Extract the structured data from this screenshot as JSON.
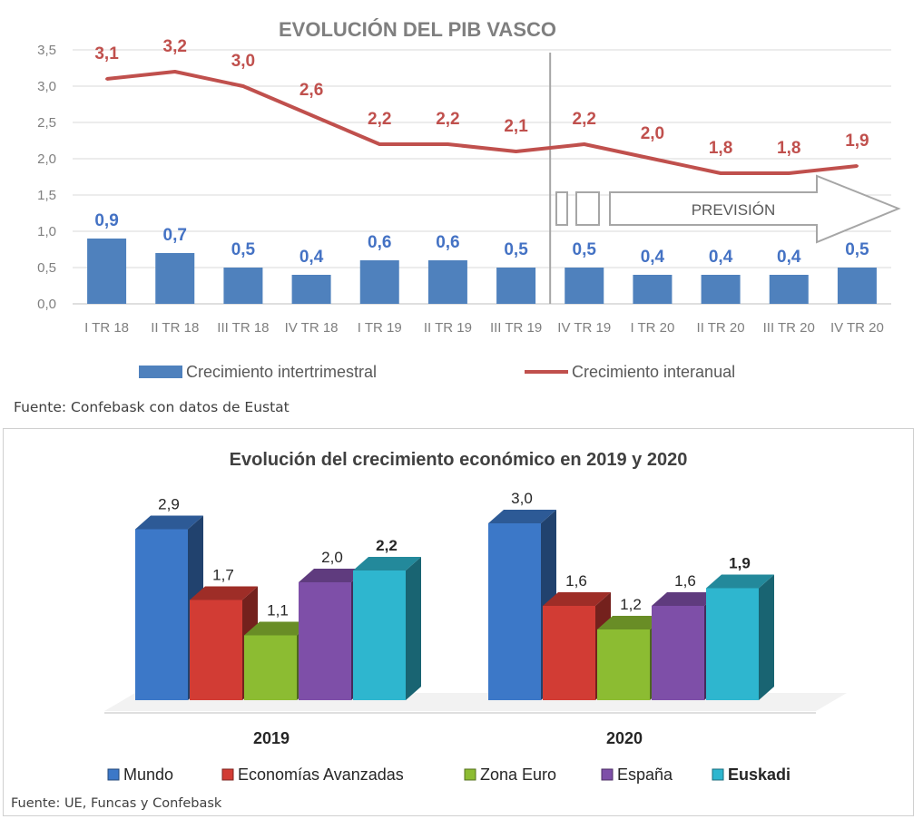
{
  "chart_data": [
    {
      "type": "bar+line",
      "title": "EVOLUCIÓN DEL PIB VASCO",
      "categories": [
        "I TR 18",
        "II TR 18",
        "III TR 18",
        "IV TR 18",
        "I TR 19",
        "II TR 19",
        "III TR 19",
        "IV TR 19",
        "I TR 20",
        "II TR 20",
        "III TR 20",
        "IV TR 20"
      ],
      "series": [
        {
          "name": "Crecimiento intertrimestral",
          "type": "bar",
          "color": "#4f81bd",
          "values": [
            0.9,
            0.7,
            0.5,
            0.4,
            0.6,
            0.6,
            0.5,
            0.5,
            0.4,
            0.4,
            0.4,
            0.5
          ],
          "labels": [
            "0,9",
            "0,7",
            "0,5",
            "0,4",
            "0,6",
            "0,6",
            "0,5",
            "0,5",
            "0,4",
            "0,4",
            "0,4",
            "0,5"
          ]
        },
        {
          "name": "Crecimiento interanual",
          "type": "line",
          "color": "#c0504d",
          "values": [
            3.1,
            3.2,
            3.0,
            2.6,
            2.2,
            2.2,
            2.1,
            2.2,
            2.0,
            1.8,
            1.8,
            1.9
          ],
          "labels": [
            "3,1",
            "3,2",
            "3,0",
            "2,6",
            "2,2",
            "2,2",
            "2,1",
            "2,2",
            "2,0",
            "1,8",
            "1,8",
            "1,9"
          ]
        }
      ],
      "ylim": [
        0,
        3.5
      ],
      "yticks": [
        "0,0",
        "0,5",
        "1,0",
        "1,5",
        "2,0",
        "2,5",
        "3,0",
        "3,5"
      ],
      "grid": true,
      "legend": "bottom",
      "annotation": "PREVISIÓN",
      "forecast_from_index": 7,
      "source": "Fuente: Confebask con datos de Eustat"
    },
    {
      "type": "bar",
      "style": "3d-clustered",
      "title": "Evolución del crecimiento económico en 2019 y 2020",
      "categories": [
        "2019",
        "2020"
      ],
      "series": [
        {
          "name": "Mundo",
          "color": "#3c78c8",
          "values": [
            2.9,
            3.0
          ],
          "labels": [
            "2,9",
            "3,0"
          ]
        },
        {
          "name": "Economías Avanzadas",
          "color": "#d23c34",
          "values": [
            1.7,
            1.6
          ],
          "labels": [
            "1,7",
            "1,6"
          ]
        },
        {
          "name": "Zona Euro",
          "color": "#8cbc32",
          "values": [
            1.1,
            1.2
          ],
          "labels": [
            "1,1",
            "1,2"
          ]
        },
        {
          "name": "España",
          "color": "#7e4fa8",
          "values": [
            2.0,
            1.6
          ],
          "labels": [
            "2,0",
            "1,6"
          ]
        },
        {
          "name": "Euskadi",
          "color": "#2eb6cf",
          "values": [
            2.2,
            1.9
          ],
          "labels": [
            "2,2",
            "1,9"
          ]
        }
      ],
      "legend": "bottom",
      "source": "Fuente: UE, Funcas y Confebask"
    }
  ]
}
